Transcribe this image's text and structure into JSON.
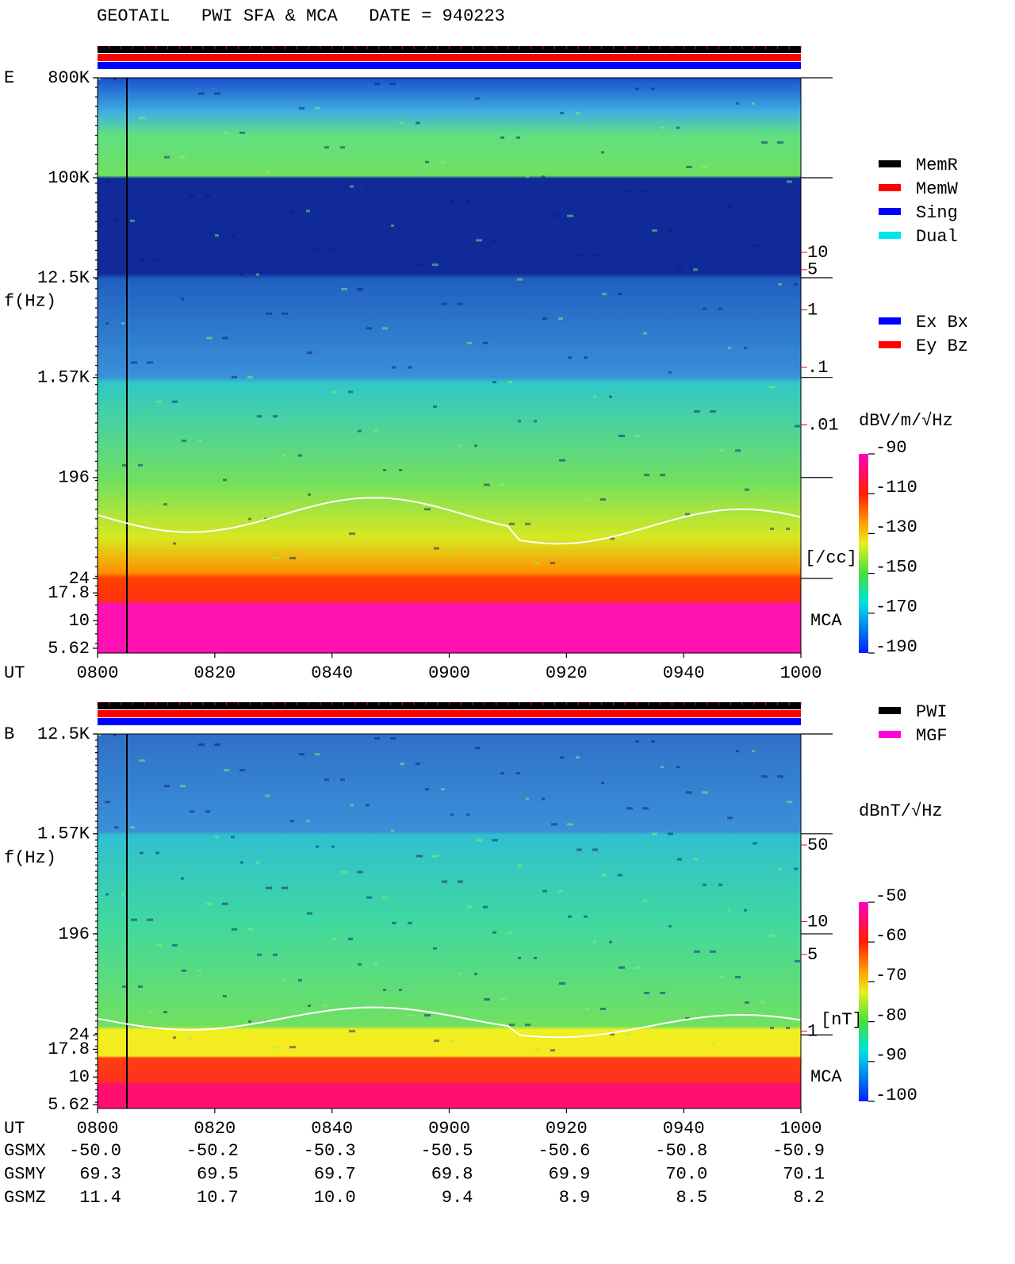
{
  "title": "GEOTAIL   PWI SFA & MCA   DATE = 940223",
  "chart_data": [
    {
      "type": "spectrogram",
      "panel_label": "E",
      "ylabel": "f(Hz)",
      "xlabel": "UT",
      "log_y": true,
      "ylim": [
        5.09,
        800000
      ],
      "yticks": [
        {
          "value": 800000,
          "label": "800K"
        },
        {
          "value": 100000,
          "label": "100K"
        },
        {
          "value": 12500,
          "label": "12.5K"
        },
        {
          "value": 1570,
          "label": "1.57K"
        },
        196,
        24,
        17.8,
        10,
        5.62
      ],
      "categories": [
        "0800",
        "0820",
        "0840",
        "0900",
        "0920",
        "0940",
        "1000"
      ],
      "density_ticks": [
        10,
        5,
        1,
        {
          "value": 0.1,
          "label": ".1"
        },
        {
          "value": 0.01,
          "label": ".01"
        }
      ],
      "density_unit": "[/cc]",
      "mca_label": "MCA",
      "legend": [
        {
          "name": "MemR",
          "color": "#000000"
        },
        {
          "name": "MemW",
          "color": "#ff0000"
        },
        {
          "name": "Sing",
          "color": "#0000ff"
        },
        {
          "name": "Dual",
          "color": "#00e5ee"
        }
      ],
      "legend2": [
        {
          "name": "Ex Bx",
          "color": "#0000ff"
        },
        {
          "name": "Ey Bz",
          "color": "#ff0000"
        }
      ],
      "colorbar": {
        "label": "dBV/m/√Hz",
        "lim": [
          -190,
          -90
        ],
        "ticks": [
          -90,
          -110,
          -130,
          -150,
          -170,
          -190
        ]
      }
    },
    {
      "type": "spectrogram",
      "panel_label": "B",
      "ylabel": "f(Hz)",
      "xlabel": "UT",
      "log_y": true,
      "ylim": [
        5.2,
        12500
      ],
      "yticks": [
        {
          "value": 12500,
          "label": "12.5K"
        },
        {
          "value": 1570,
          "label": "1.57K"
        },
        196,
        24,
        17.8,
        10,
        5.62
      ],
      "categories": [
        "0800",
        "0820",
        "0840",
        "0900",
        "0920",
        "0940",
        "1000"
      ],
      "density_ticks": [
        50,
        10,
        5,
        1
      ],
      "density_unit": "[nT]",
      "mca_label": "MCA",
      "legend": [
        {
          "name": "PWI",
          "color": "#000000"
        },
        {
          "name": "MGF",
          "color": "#ff00dd"
        }
      ],
      "colorbar": {
        "label": "dBnT/√Hz",
        "lim": [
          -100,
          -50
        ],
        "ticks": [
          -50,
          -60,
          -70,
          -80,
          -90,
          -100
        ]
      }
    }
  ],
  "orbit": {
    "rows": [
      {
        "name": "GSMX",
        "values": [
          "-50.0",
          "-50.2",
          "-50.3",
          "-50.5",
          "-50.6",
          "-50.8",
          "-50.9"
        ]
      },
      {
        "name": "GSMY",
        "values": [
          "69.3",
          "69.5",
          "69.7",
          "69.8",
          "69.9",
          "70.0",
          "70.1"
        ]
      },
      {
        "name": "GSMZ",
        "values": [
          "11.4",
          "10.7",
          "10.0",
          "9.4",
          "8.9",
          "8.5",
          "8.2"
        ]
      }
    ]
  }
}
